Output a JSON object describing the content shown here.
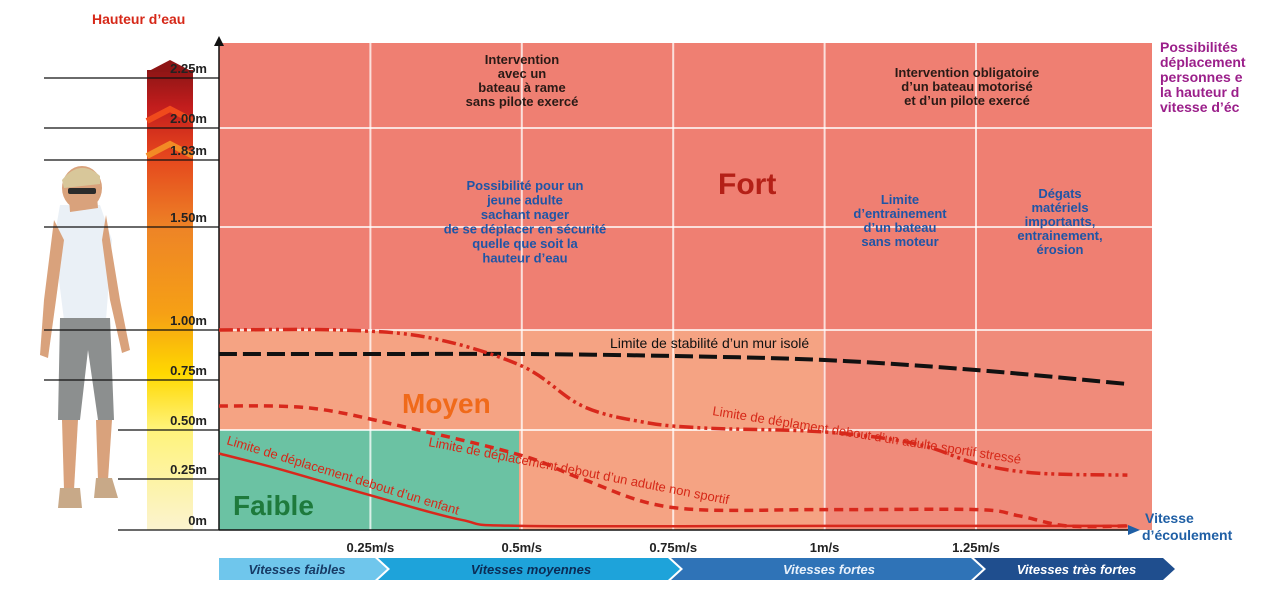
{
  "chart_data": {
    "type": "area",
    "ylabel": "Hauteur d’eau",
    "xlabel": "Vitesse d’écoulement",
    "y_ticks": [
      "0m",
      "0.25m",
      "0.50m",
      "0.75m",
      "1.00m",
      "1.50m",
      "1.83m",
      "2.00m",
      "2.25m"
    ],
    "x_ticks": [
      "0.25m/s",
      "0.5m/s",
      "0.75m/s",
      "1m/s",
      "1.25m/s"
    ],
    "zones": [
      {
        "name": "Faible",
        "color": "#6bc2a3"
      },
      {
        "name": "Moyen",
        "color": "#f5a383"
      },
      {
        "name": "Fort",
        "color": "#ef7f72"
      }
    ],
    "series": [
      {
        "name": "Limite de stabilité  d’un mur isolé",
        "color": "#111111",
        "x": [
          0,
          0.25,
          0.5,
          0.75,
          1.0,
          1.25,
          1.5
        ],
        "y": [
          0.88,
          0.88,
          0.88,
          0.87,
          0.85,
          0.8,
          0.73
        ]
      },
      {
        "name": "Limite de déplament debout d’un adulte sportif stressé",
        "color": "#d8281c",
        "x": [
          0,
          0.2,
          0.35,
          0.5,
          0.6,
          0.7,
          0.8,
          1.0,
          1.15,
          1.25,
          1.35,
          1.5
        ],
        "y": [
          1.0,
          1.0,
          0.96,
          0.82,
          0.62,
          0.54,
          0.51,
          0.49,
          0.43,
          0.33,
          0.28,
          0.27
        ]
      },
      {
        "name": "Limite de déplacement debout d’un adulte non sportif",
        "color": "#d8281c",
        "x": [
          0,
          0.15,
          0.3,
          0.5,
          0.6,
          0.75,
          1.0,
          1.25,
          1.32,
          1.4,
          1.5
        ],
        "y": [
          0.62,
          0.61,
          0.52,
          0.37,
          0.25,
          0.11,
          0.1,
          0.1,
          0.07,
          0.02,
          0.02
        ]
      },
      {
        "name": "Limite de déplacement debout d’un enfant",
        "color": "#d8281c",
        "x": [
          0,
          0.1,
          0.25,
          0.4,
          0.5,
          1.0,
          1.5
        ],
        "y": [
          0.38,
          0.3,
          0.17,
          0.05,
          0.02,
          0.02,
          0.02
        ]
      }
    ],
    "annotations": [
      {
        "text": "Intervention\navec un\nbateau à rame\nsans pilote exercé"
      },
      {
        "text": "Intervention obligatoire\nd’un bateau motorisé\net d’un pilote exercé"
      },
      {
        "text": "Possibilité pour un\njeune adulte\nsachant nager\nde se déplacer en sécurité\nquelle que soit la\nhauteur d’eau"
      },
      {
        "text": "Limite\nd’entrainement\nd’un bateau\nsans moteur"
      },
      {
        "text": "Dégats\nmatériels\nimportants,\nentrainement,\nérosion"
      }
    ],
    "speed_bands": [
      "Vitesses faibles",
      "Vitesses moyennes",
      "Vitesses fortes",
      "Vitesses très fortes"
    ],
    "side_note": [
      "Possibilités",
      "déplacement",
      "personnes e",
      "la hauteur d",
      "vitesse d’éc"
    ]
  }
}
